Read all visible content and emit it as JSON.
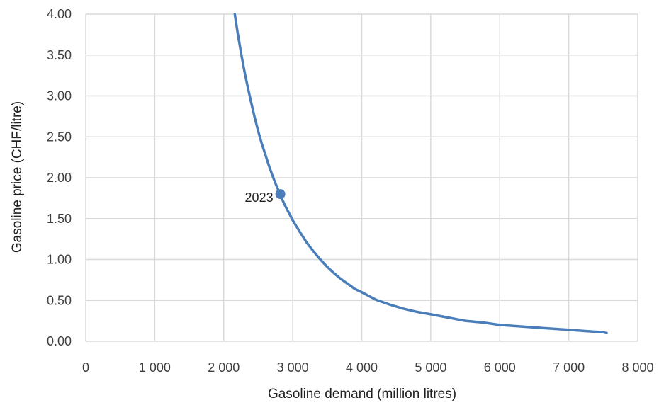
{
  "chart_data": {
    "type": "line",
    "title": "",
    "xlabel": "Gasoline demand (million litres)",
    "ylabel": "Gasoline price (CHF/litre)",
    "xlim": [
      0,
      8000
    ],
    "ylim": [
      0,
      4
    ],
    "x_ticks": [
      0,
      1000,
      2000,
      3000,
      4000,
      5000,
      6000,
      7000,
      8000
    ],
    "x_tick_labels": [
      "0",
      "1 000",
      "2 000",
      "3 000",
      "4 000",
      "5 000",
      "6 000",
      "7 000",
      "8 000"
    ],
    "y_ticks": [
      0,
      0.5,
      1,
      1.5,
      2,
      2.5,
      3,
      3.5,
      4
    ],
    "y_tick_labels": [
      "0.00",
      "0.50",
      "1.00",
      "1.50",
      "2.00",
      "2.50",
      "3.00",
      "3.50",
      "4.00"
    ],
    "grid": true,
    "legend": "none",
    "series": [
      {
        "color": "#4a7ebb",
        "x": [
          2160,
          2200,
          2250,
          2300,
          2350,
          2400,
          2450,
          2500,
          2550,
          2600,
          2650,
          2700,
          2750,
          2800,
          2850,
          2900,
          2950,
          3000,
          3100,
          3200,
          3300,
          3400,
          3500,
          3600,
          3700,
          3800,
          3900,
          4000,
          4200,
          4400,
          4600,
          4800,
          5000,
          5250,
          5500,
          5750,
          6000,
          6250,
          6500,
          6750,
          7000,
          7250,
          7500,
          7550
        ],
        "y": [
          4.0,
          3.78,
          3.53,
          3.3,
          3.1,
          2.91,
          2.73,
          2.57,
          2.42,
          2.29,
          2.16,
          2.04,
          1.93,
          1.83,
          1.73,
          1.64,
          1.56,
          1.48,
          1.34,
          1.21,
          1.1,
          1.0,
          0.91,
          0.83,
          0.76,
          0.7,
          0.64,
          0.6,
          0.51,
          0.45,
          0.4,
          0.36,
          0.33,
          0.29,
          0.25,
          0.23,
          0.2,
          0.185,
          0.17,
          0.155,
          0.14,
          0.125,
          0.11,
          0.1
        ]
      }
    ],
    "points": [
      {
        "x": 2820,
        "y": 1.8,
        "label": "2023",
        "color": "#4a7ebb"
      }
    ]
  }
}
